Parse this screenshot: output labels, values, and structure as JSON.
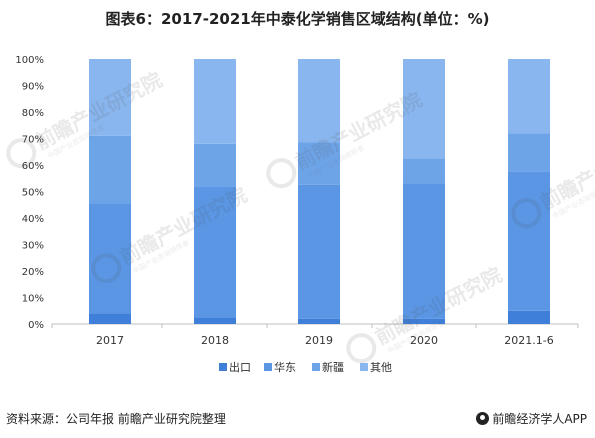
{
  "page": {
    "title": "图表6：2017-2021年中泰化学销售区域结构(单位：%)",
    "source": "资料来源：公司年报 前瞻产业研究院整理",
    "brand": "前瞻经济学人APP",
    "watermark": {
      "text": "前瞻产业研究院",
      "sub": "中国产业咨询领导者"
    }
  },
  "chart_data": {
    "type": "bar",
    "stacked": true,
    "title": "图表6：2017-2021年中泰化学销售区域结构(单位：%)",
    "xlabel": "",
    "ylabel": "",
    "categories": [
      "2017",
      "2018",
      "2019",
      "2020",
      "2021.1-6"
    ],
    "series": [
      {
        "name": "出口",
        "color": "#3f7fd9",
        "values": [
          4,
          2.5,
          2,
          2,
          5
        ]
      },
      {
        "name": "华东",
        "color": "#5a96e3",
        "values": [
          41.5,
          49.5,
          50.5,
          51,
          52.5
        ]
      },
      {
        "name": "新疆",
        "color": "#6da4e8",
        "values": [
          25.5,
          16,
          16,
          9.5,
          14.5
        ]
      },
      {
        "name": "其他",
        "color": "#89b6ee",
        "values": [
          29,
          32,
          31.5,
          37.5,
          28
        ]
      }
    ],
    "ylim": [
      0,
      100
    ],
    "yticks": [
      "0%",
      "10%",
      "20%",
      "30%",
      "40%",
      "50%",
      "60%",
      "70%",
      "80%",
      "90%",
      "100%"
    ],
    "grid": false,
    "legend": "bottom"
  }
}
